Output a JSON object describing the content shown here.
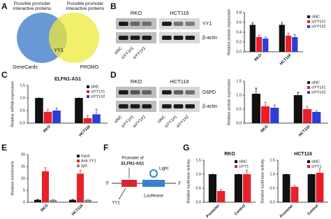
{
  "panel_labels": [
    "A",
    "B",
    "C",
    "D",
    "E",
    "F",
    "G"
  ],
  "venn": {
    "left_title": "Possible promoter interactive proteins",
    "right_title": "Possible promoter interactive proteins",
    "left_label": "GeneCards",
    "right_label": "PROMO",
    "overlap_label": "YY1"
  },
  "blots": [
    {
      "cell_lines": [
        "RKO",
        "HCT116"
      ],
      "proteins": [
        "YY1",
        "β-actin"
      ],
      "lanes": [
        "siNC",
        "siYY1#1",
        "siYY1#2"
      ]
    },
    {
      "cell_lines": [
        "RKO",
        "HCT116"
      ],
      "proteins": [
        "G6PD",
        "β-actin"
      ],
      "lanes": [
        "siNC",
        "siYY1#1",
        "siYY1#2"
      ]
    }
  ],
  "diagram": {
    "promoter": "Promoter of",
    "gene": "ELFN1-AS1",
    "five_prime": "5'",
    "three_prime": "3'",
    "factor": "YY1",
    "reporter": "Luciferase",
    "signal": "Light"
  },
  "chart_data": [
    {
      "type": "bar",
      "ylabel": "Relative protein expression",
      "categories": [
        "RKO",
        "HCT116"
      ],
      "series": [
        {
          "name": "siNC",
          "color": "#111111",
          "values": [
            0.55,
            0.55
          ],
          "errors": [
            0.04,
            0.04
          ]
        },
        {
          "name": "siYY1#1",
          "color": "#e8202a",
          "values": [
            0.3,
            0.33
          ],
          "errors": [
            0.04,
            0.05
          ]
        },
        {
          "name": "siYY1#2",
          "color": "#2b3fd6",
          "values": [
            0.27,
            0.3
          ],
          "errors": [
            0.03,
            0.05
          ]
        }
      ],
      "ylim": [
        0,
        0.8
      ],
      "yticks": [
        {
          "value": 0,
          "label": "0.0"
        },
        0.2,
        0.4,
        0.6,
        0.8
      ],
      "legend": "right"
    },
    {
      "type": "bar",
      "title": "ELFN1-AS1",
      "ylabel": "Relative mRNA expression",
      "categories": [
        "RKO",
        "HCT116"
      ],
      "series": [
        {
          "name": "siNC",
          "color": "#111111",
          "values": [
            1.0,
            1.0
          ],
          "errors": [
            0.0,
            0.0
          ]
        },
        {
          "name": "siYY1#1",
          "color": "#e8202a",
          "values": [
            0.45,
            0.2
          ],
          "errors": [
            0.1,
            0.1
          ]
        },
        {
          "name": "siYY1#2",
          "color": "#2b3fd6",
          "values": [
            0.5,
            0.35
          ],
          "errors": [
            0.1,
            0.2
          ]
        }
      ],
      "ylim": [
        0,
        1.5
      ],
      "yticks": [
        {
          "value": 0,
          "label": "0.0"
        },
        0.5,
        {
          "value": 1,
          "label": "1.0"
        },
        1.5
      ],
      "legend": "top-right"
    },
    {
      "type": "bar",
      "ylabel": "Relative protein expression",
      "categories": [
        "RKO",
        "HCT116"
      ],
      "series": [
        {
          "name": "siNC",
          "color": "#111111",
          "values": [
            1.05,
            1.0
          ],
          "errors": [
            0.2,
            0.1
          ]
        },
        {
          "name": "siYY1#1",
          "color": "#e8202a",
          "values": [
            0.6,
            0.5
          ],
          "errors": [
            0.15,
            0.1
          ]
        },
        {
          "name": "siYY1#2",
          "color": "#2b3fd6",
          "values": [
            0.55,
            0.4
          ],
          "errors": [
            0.1,
            0.05
          ]
        }
      ],
      "ylim": [
        0,
        1.5
      ],
      "yticks": [
        {
          "value": 0,
          "label": "0.0"
        },
        0.5,
        {
          "value": 1,
          "label": "1.0"
        },
        1.5
      ],
      "legend": "top-right"
    },
    {
      "type": "bar",
      "ylabel": "Relative enrichment",
      "categories": [
        "RKO",
        "HCT116"
      ],
      "series": [
        {
          "name": "Input",
          "color": "#111111",
          "values": [
            1,
            1
          ],
          "errors": [
            0.2,
            0.2
          ]
        },
        {
          "name": "Anti-YY1",
          "color": "#e8202a",
          "values": [
            13,
            12
          ],
          "errors": [
            1.5,
            1.5
          ]
        },
        {
          "name": "IgG",
          "color": "#888888",
          "values": [
            1,
            1
          ],
          "errors": [
            0.2,
            0.2
          ]
        }
      ],
      "ylim": [
        0,
        20
      ],
      "yticks": [
        0,
        5,
        10,
        15,
        20
      ],
      "legend": "top-right"
    },
    {
      "type": "bar",
      "title": "RKO",
      "ylabel": "Relative luciferase activity",
      "categories": [
        "Promoter",
        "Control"
      ],
      "series": [
        {
          "name": "siNC",
          "color": "#111111",
          "values": [
            1.0,
            1.0
          ],
          "errors": [
            0.0,
            0.0
          ]
        },
        {
          "name": "siYY1",
          "color": "#e8202a",
          "values": [
            0.4,
            1.0
          ],
          "errors": [
            0.05,
            0.15
          ]
        }
      ],
      "ylim": [
        0,
        1.5
      ],
      "yticks": [
        {
          "value": 0,
          "label": "0.0"
        },
        0.5,
        {
          "value": 1,
          "label": "1.0"
        },
        1.5
      ],
      "legend": "top-right"
    },
    {
      "type": "bar",
      "title": "HCT116",
      "ylabel": "Relative luciferase activity",
      "categories": [
        "Promoter",
        "Control"
      ],
      "series": [
        {
          "name": "siNC",
          "color": "#111111",
          "values": [
            1.0,
            1.0
          ],
          "errors": [
            0.0,
            0.0
          ]
        },
        {
          "name": "siYY1",
          "color": "#e8202a",
          "values": [
            0.55,
            1.05
          ],
          "errors": [
            0.05,
            0.15
          ]
        }
      ],
      "ylim": [
        0,
        1.5
      ],
      "yticks": [
        {
          "value": 0,
          "label": "0.0"
        },
        0.5,
        {
          "value": 1,
          "label": "1.0"
        },
        1.5
      ],
      "legend": "top-right"
    }
  ]
}
